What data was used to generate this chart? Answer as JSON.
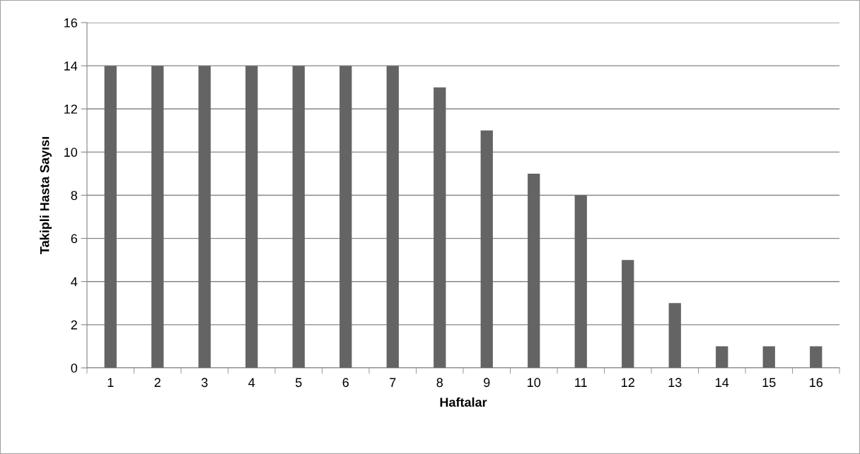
{
  "chart_data": {
    "type": "bar",
    "xlabel": "Haftalar",
    "ylabel": "Takipli Hasta Sayısı",
    "categories": [
      "1",
      "2",
      "3",
      "4",
      "5",
      "6",
      "7",
      "8",
      "9",
      "10",
      "11",
      "12",
      "13",
      "14",
      "15",
      "16"
    ],
    "values": [
      14,
      14,
      14,
      14,
      14,
      14,
      14,
      13,
      11,
      9,
      8,
      5,
      3,
      1,
      1,
      1
    ],
    "color": "#646464",
    "ylim": [
      0,
      16
    ],
    "yticks": [
      0,
      2,
      4,
      6,
      8,
      10,
      12,
      14,
      16
    ],
    "grid": "y",
    "legend": false
  }
}
